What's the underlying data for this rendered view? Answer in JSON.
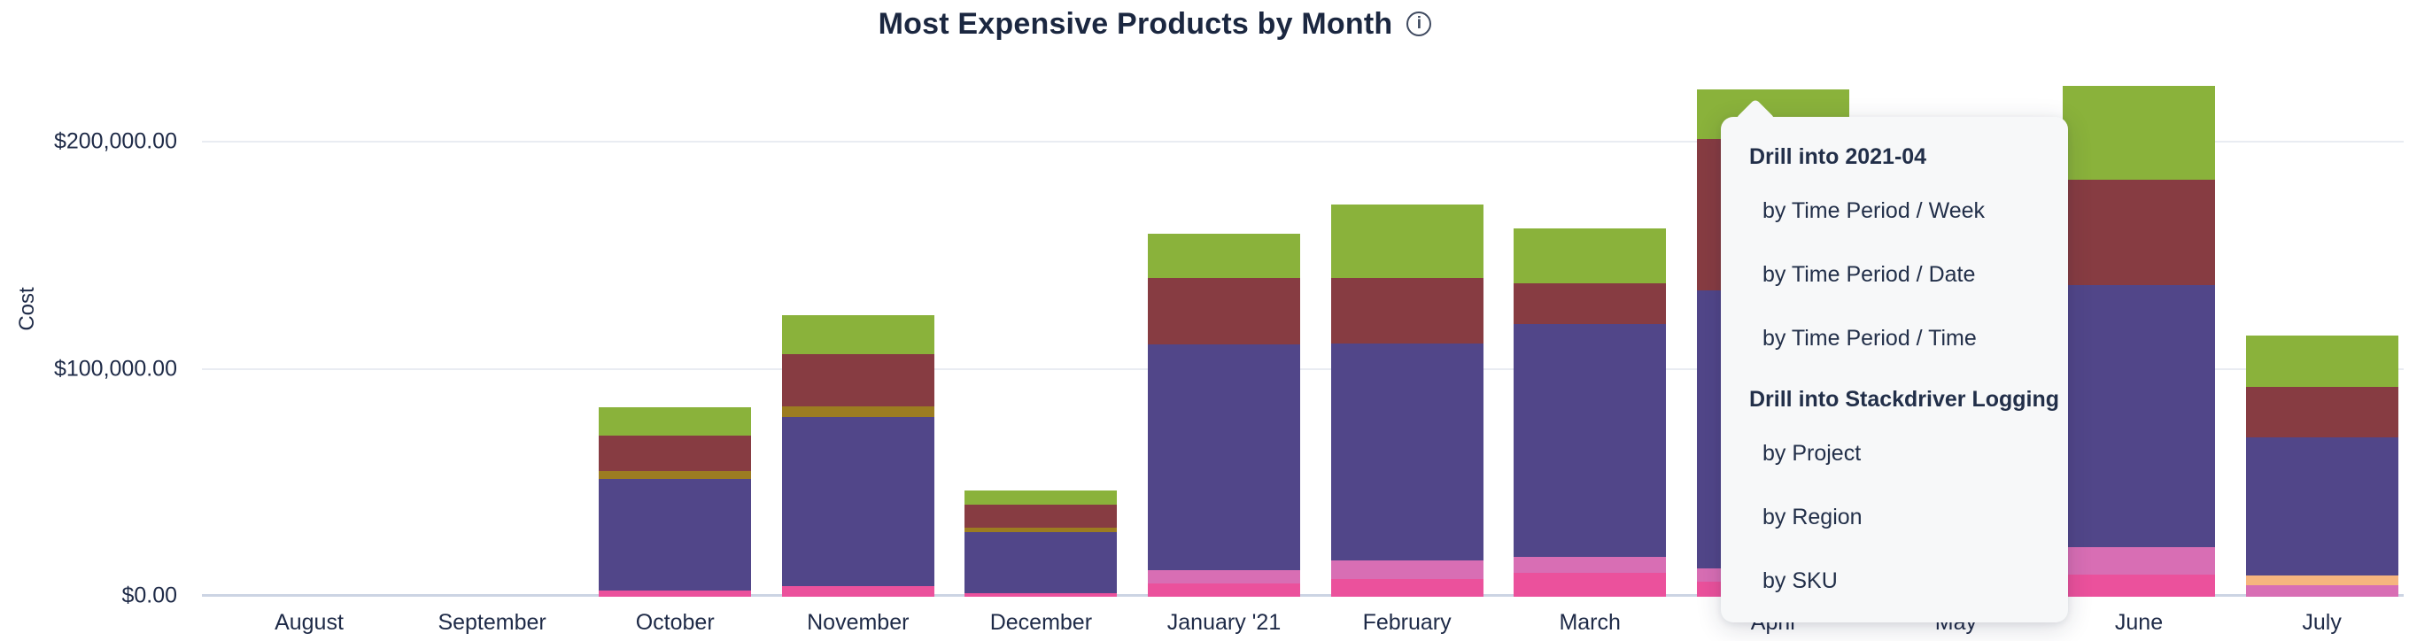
{
  "title": {
    "text": "Most Expensive Products by Month",
    "info_icon": "i"
  },
  "y_axis": {
    "label": "Cost",
    "ticks": [
      {
        "label": "$200,000.00",
        "value": 200000
      },
      {
        "label": "$100,000.00",
        "value": 100000
      },
      {
        "label": "$0.00",
        "value": 0
      }
    ]
  },
  "x_axis": {
    "labels": [
      "August",
      "September",
      "October",
      "November",
      "December",
      "January '21",
      "February",
      "March",
      "April",
      "May",
      "June",
      "July"
    ]
  },
  "menu": {
    "sections": [
      {
        "header": "Drill into 2021-04",
        "items": [
          "by Time Period / Week",
          "by Time Period / Date",
          "by Time Period / Time"
        ]
      },
      {
        "header": "Drill into Stackdriver Logging",
        "items": [
          "by Project",
          "by Region",
          "by SKU"
        ]
      }
    ]
  },
  "colors": {
    "green": "#8ab23b",
    "maroon": "#873c42",
    "olive": "#9c7c21",
    "purple": "#514689",
    "light_pink": "#d86eb4",
    "pink": "#eb519c",
    "orange": "#f6b57e",
    "gridline": "#e9ecf2",
    "axis": "#ccd4e3",
    "text": "#1e2a47",
    "menu_bg": "#f7f8f9"
  },
  "chart_data": {
    "type": "bar",
    "stacked": true,
    "title": "Most Expensive Products by Month",
    "xlabel": "",
    "ylabel": "Cost",
    "ylim": [
      0,
      225000
    ],
    "yticks": [
      0,
      100000,
      200000
    ],
    "grid": "horizontal",
    "legend": "none",
    "categories": [
      "August",
      "September",
      "October",
      "November",
      "December",
      "January '21",
      "February",
      "March",
      "April",
      "May",
      "June",
      "July"
    ],
    "bars": [
      {
        "month": "August",
        "total": 0,
        "segments": []
      },
      {
        "month": "September",
        "total": 0,
        "segments": []
      },
      {
        "month": "October",
        "total": 83500,
        "segments": [
          {
            "color": "pink",
            "value": 2700
          },
          {
            "color": "purple",
            "value": 49200
          },
          {
            "color": "olive",
            "value": 3500
          },
          {
            "color": "maroon",
            "value": 15600
          },
          {
            "color": "green",
            "value": 12500
          }
        ]
      },
      {
        "month": "November",
        "total": 124100,
        "segments": [
          {
            "color": "pink",
            "value": 4700
          },
          {
            "color": "purple",
            "value": 74500
          },
          {
            "color": "olive",
            "value": 4700
          },
          {
            "color": "maroon",
            "value": 23000
          },
          {
            "color": "green",
            "value": 17200
          }
        ]
      },
      {
        "month": "December",
        "total": 46800,
        "segments": [
          {
            "color": "pink",
            "value": 1600
          },
          {
            "color": "purple",
            "value": 26900
          },
          {
            "color": "olive",
            "value": 2000
          },
          {
            "color": "maroon",
            "value": 10100
          },
          {
            "color": "green",
            "value": 6200
          }
        ]
      },
      {
        "month": "January '21",
        "total": 159700,
        "segments": [
          {
            "color": "pink",
            "value": 5800
          },
          {
            "color": "light_pink",
            "value": 5800
          },
          {
            "color": "purple",
            "value": 99400
          },
          {
            "color": "maroon",
            "value": 29200
          },
          {
            "color": "green",
            "value": 19500
          }
        ]
      },
      {
        "month": "February",
        "total": 172800,
        "segments": [
          {
            "color": "pink",
            "value": 7800
          },
          {
            "color": "light_pink",
            "value": 8200
          },
          {
            "color": "purple",
            "value": 95500
          },
          {
            "color": "maroon",
            "value": 28900
          },
          {
            "color": "green",
            "value": 32400
          }
        ]
      },
      {
        "month": "March",
        "total": 162100,
        "segments": [
          {
            "color": "pink",
            "value": 10500
          },
          {
            "color": "light_pink",
            "value": 7000
          },
          {
            "color": "purple",
            "value": 102500
          },
          {
            "color": "maroon",
            "value": 17900
          },
          {
            "color": "green",
            "value": 24200
          }
        ]
      },
      {
        "month": "April",
        "total": 223300,
        "segments": [
          {
            "color": "pink",
            "value": 6600
          },
          {
            "color": "light_pink",
            "value": 5800
          },
          {
            "color": "purple",
            "value": 122400
          },
          {
            "color": "maroon",
            "value": 66700
          },
          {
            "color": "green",
            "value": 21800
          }
        ]
      },
      {
        "month": "May",
        "total": 0,
        "hidden_by_menu": true,
        "segments": []
      },
      {
        "month": "June",
        "total": 224900,
        "segments": [
          {
            "color": "pink",
            "value": 9700
          },
          {
            "color": "light_pink",
            "value": 12100
          },
          {
            "color": "purple",
            "value": 115400
          },
          {
            "color": "maroon",
            "value": 46400
          },
          {
            "color": "green",
            "value": 41300
          }
        ]
      },
      {
        "month": "July",
        "total": 115000,
        "segments": [
          {
            "color": "light_pink",
            "value": 5100
          },
          {
            "color": "orange",
            "value": 4300
          },
          {
            "color": "purple",
            "value": 60800
          },
          {
            "color": "maroon",
            "value": 22200
          },
          {
            "color": "green",
            "value": 22600
          }
        ]
      }
    ]
  }
}
